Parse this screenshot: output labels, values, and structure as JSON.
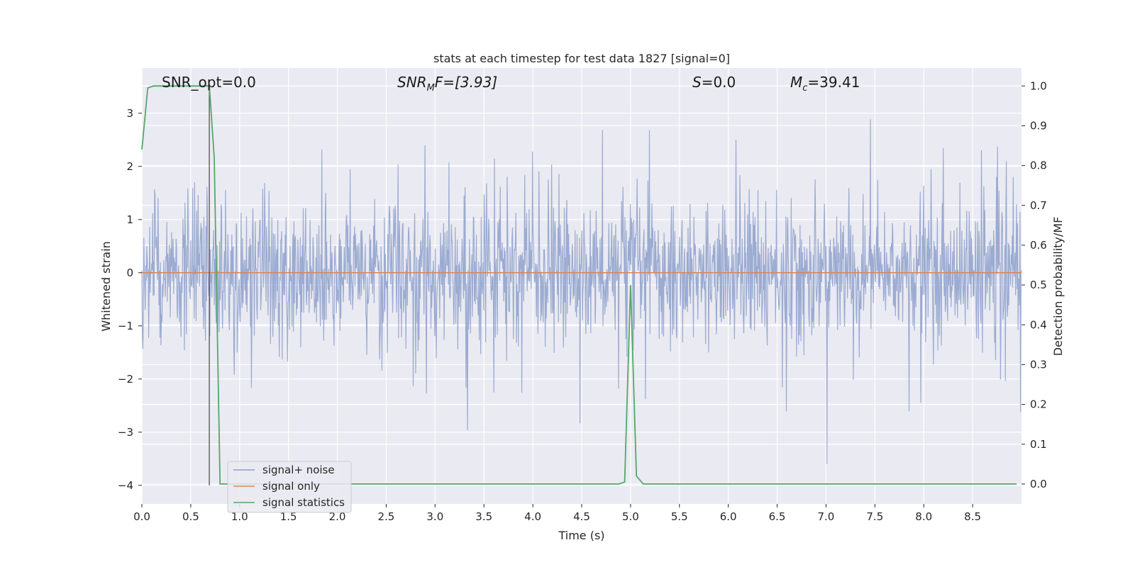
{
  "chart_data": {
    "type": "line",
    "title": "stats at each timestep for test data 1827 [signal=0]",
    "xlabel": "Time (s)",
    "ylabel": "Whitened strain",
    "y2label": "Detection probability/MF",
    "xlim": [
      0,
      9.0
    ],
    "ylim": [
      -4.35,
      3.85
    ],
    "y2lim": [
      -0.05,
      1.045
    ],
    "x_ticks": [
      0.0,
      0.5,
      1.0,
      1.5,
      2.0,
      2.5,
      3.0,
      3.5,
      4.0,
      4.5,
      5.0,
      5.5,
      6.0,
      6.5,
      7.0,
      7.5,
      8.0,
      8.5
    ],
    "x_tick_labels": [
      "0.0",
      "0.5",
      "1.0",
      "1.5",
      "2.0",
      "2.5",
      "3.0",
      "3.5",
      "4.0",
      "4.5",
      "5.0",
      "5.5",
      "6.0",
      "6.5",
      "7.0",
      "7.5",
      "8.0",
      "8.5"
    ],
    "y_ticks": [
      3,
      2,
      1,
      0,
      -1,
      -2,
      -3,
      -4
    ],
    "y_tick_labels": [
      "3",
      "2",
      "1",
      "0",
      "−1",
      "−2",
      "−3",
      "−4"
    ],
    "y2_ticks": [
      1.0,
      0.9,
      0.8,
      0.7,
      0.6,
      0.5,
      0.4,
      0.3,
      0.2,
      0.1,
      0.0
    ],
    "y2_tick_labels": [
      "1.0",
      "0.9",
      "0.8",
      "0.7",
      "0.6",
      "0.5",
      "0.4",
      "0.3",
      "0.2",
      "0.1",
      "0.0"
    ],
    "grid": true,
    "legend_position": "lower-left",
    "annotations": {
      "snr_opt": "SNR_opt=0.0",
      "snr_mf_base": "SNR",
      "snr_mf_sub": "M",
      "snr_mf_rest": "F=[3.93]",
      "s_base": "S",
      "s_rest": "=0.0",
      "mc_base": "M",
      "mc_sub": "c",
      "mc_rest": "=39.41"
    },
    "vline_x": 0.69,
    "vline_ymin": -4.0,
    "series": [
      {
        "name": "signal+ noise",
        "color": "#8da0cb",
        "axis": "left",
        "noise_std": 0.62,
        "seed": 1827,
        "n_points": 1800
      },
      {
        "name": "signal only",
        "color": "#dd8452",
        "axis": "left",
        "x": [
          0,
          9.0
        ],
        "y": [
          0,
          0
        ]
      },
      {
        "name": "signal statistics",
        "color": "#55a868",
        "axis": "right",
        "x": [
          0.0,
          0.06,
          0.12,
          0.25,
          0.5,
          0.65,
          0.69,
          0.74,
          0.8,
          0.88,
          1.0,
          2.0,
          3.0,
          4.0,
          4.5,
          4.88,
          4.94,
          5.0,
          5.06,
          5.13,
          5.5,
          6.0,
          7.0,
          8.0,
          8.95
        ],
        "y": [
          0.84,
          0.995,
          1.0,
          1.0,
          1.0,
          1.0,
          1.0,
          0.82,
          0.0,
          0.0,
          0.0,
          0.0,
          0.0,
          0.0,
          0.0,
          0.0,
          0.005,
          0.5,
          0.02,
          0.0,
          0.0,
          0.0,
          0.0,
          0.0,
          0.0
        ]
      }
    ]
  }
}
